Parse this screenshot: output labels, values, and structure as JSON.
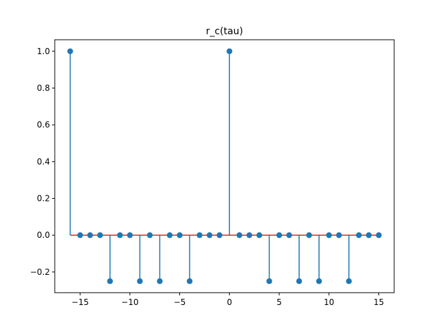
{
  "chart_data": {
    "type": "stem",
    "title": "r_c(tau)",
    "xlabel": "",
    "ylabel": "",
    "xlim": [
      -17.55,
      16.55
    ],
    "ylim": [
      -0.3125,
      1.0625
    ],
    "xticks": [
      -15,
      -10,
      -5,
      0,
      5,
      10,
      15
    ],
    "xtick_labels": [
      "−15",
      "−10",
      "−5",
      "0",
      "5",
      "10",
      "15"
    ],
    "yticks": [
      -0.2,
      0.0,
      0.2,
      0.4,
      0.6,
      0.8,
      1.0
    ],
    "ytick_labels": [
      "−0.2",
      "0.0",
      "0.2",
      "0.4",
      "0.6",
      "0.8",
      "1.0"
    ],
    "grid": false,
    "x": [
      -16,
      -15,
      -14,
      -13,
      -12,
      -11,
      -10,
      -9,
      -8,
      -7,
      -6,
      -5,
      -4,
      -3,
      -2,
      -1,
      0,
      1,
      2,
      3,
      4,
      5,
      6,
      7,
      8,
      9,
      10,
      11,
      12,
      13,
      14,
      15
    ],
    "values": [
      1.0,
      0,
      0,
      0,
      -0.25,
      0,
      0,
      -0.25,
      0,
      -0.25,
      0,
      0,
      -0.25,
      0,
      0,
      0,
      1.0,
      0,
      0,
      0,
      -0.25,
      0,
      0,
      -0.25,
      0,
      -0.25,
      0,
      0,
      -0.25,
      0,
      0,
      0
    ],
    "baseline": 0.0,
    "colors": {
      "stem": "#1f77b4",
      "marker": "#1f77b4",
      "baseline": "#d62728"
    }
  }
}
